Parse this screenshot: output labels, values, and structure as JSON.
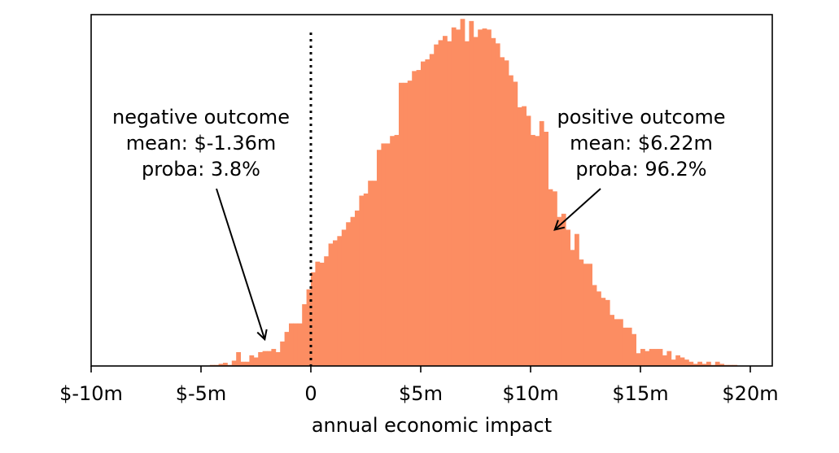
{
  "chart_data": {
    "type": "bar",
    "xlabel": "annual economic impact",
    "ylabel": "",
    "xlim": [
      -10,
      21
    ],
    "ylim": [
      0,
      330
    ],
    "y_axis_visible": false,
    "bin_width": 0.2,
    "bar_color": "#fc8d62",
    "x_ticks": [
      {
        "value": -10,
        "label": "$-10m"
      },
      {
        "value": -5,
        "label": "$-5m"
      },
      {
        "value": 0,
        "label": "0"
      },
      {
        "value": 5,
        "label": "$5m"
      },
      {
        "value": 10,
        "label": "$10m"
      },
      {
        "value": 15,
        "label": "$15m"
      },
      {
        "value": 20,
        "label": "$20m"
      }
    ],
    "threshold_line": {
      "x": 0,
      "style": "dotted"
    },
    "annotations": [
      {
        "name": "negative",
        "lines": [
          "negative outcome",
          "mean: $-1.36m",
          "proba: 3.8%"
        ],
        "arrow_target": {
          "x": -2.1,
          "y": 25
        }
      },
      {
        "name": "positive",
        "lines": [
          "positive outcome",
          "mean: $6.22m",
          "proba: 96.2%"
        ],
        "arrow_target": {
          "x": 11.1,
          "y": 128
        }
      }
    ],
    "bins_start": -4.6,
    "counts": [
      1,
      1,
      2,
      3,
      1,
      5,
      13,
      4,
      4,
      10,
      8,
      13,
      14,
      14,
      16,
      13,
      23,
      32,
      40,
      40,
      40,
      58,
      72,
      88,
      98,
      97,
      103,
      115,
      118,
      122,
      128,
      135,
      140,
      146,
      160,
      162,
      174,
      174,
      203,
      209,
      209,
      216,
      217,
      266,
      266,
      268,
      277,
      278,
      286,
      288,
      293,
      302,
      306,
      310,
      305,
      318,
      316,
      326,
      305,
      324,
      309,
      316,
      317,
      316,
      308,
      303,
      290,
      287,
      273,
      267,
      243,
      244,
      235,
      217,
      216,
      230,
      220,
      166,
      164,
      140,
      143,
      128,
      109,
      124,
      100,
      96,
      96,
      76,
      70,
      64,
      62,
      48,
      44,
      44,
      36,
      36,
      30,
      12,
      16,
      14,
      16,
      16,
      16,
      10,
      14,
      6,
      10,
      8,
      6,
      4,
      2,
      4,
      2,
      4,
      1,
      4,
      2,
      1,
      1,
      1
    ]
  }
}
